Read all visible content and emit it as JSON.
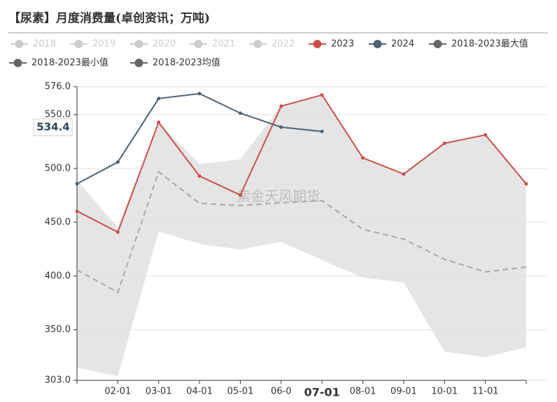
{
  "chart_data": {
    "type": "line",
    "title": "【尿素】月度消费量(卓创资讯；万吨)",
    "watermark": "紫金天风期货",
    "categories": [
      null,
      "02-01",
      "03-01",
      "04-01",
      "05-01",
      "06-0",
      "07-01",
      "08-01",
      "09-01",
      "10-01",
      "11-01",
      null
    ],
    "highlight_category": 6,
    "pointer_value": 534.4,
    "ylim": [
      303,
      576
    ],
    "yticks": [
      {
        "value": 303,
        "label": "303.0"
      },
      {
        "value": 350,
        "label": "350.0"
      },
      {
        "value": 400,
        "label": "400.0"
      },
      {
        "value": 450,
        "label": "450.0"
      },
      {
        "value": 500,
        "label": "500.0"
      },
      {
        "value": 550,
        "label": "550.0"
      },
      {
        "value": 576,
        "label": "576.0"
      }
    ],
    "grid": true,
    "series": [
      {
        "name": "2018",
        "color": "#cccccc",
        "hidden": true
      },
      {
        "name": "2019",
        "color": "#cccccc",
        "hidden": true
      },
      {
        "name": "2020",
        "color": "#cccccc",
        "hidden": true
      },
      {
        "name": "2021",
        "color": "#cccccc",
        "hidden": true
      },
      {
        "name": "2022",
        "color": "#cccccc",
        "hidden": true
      },
      {
        "name": "2023",
        "color": "#c9504d",
        "values": [
          460.3,
          440.8,
          542.9,
          492.9,
          475.3,
          557.9,
          568.3,
          509.8,
          494.8,
          523.4,
          531.2,
          485.7
        ]
      },
      {
        "name": "2024",
        "color": "#4f6272",
        "values": [
          485.7,
          505.9,
          565.0,
          569.6,
          551.4,
          538.4,
          534.4,
          null,
          null,
          null,
          null,
          null
        ]
      },
      {
        "name": "2018-2023最大值",
        "color": "#666666",
        "role": "band-max",
        "fill": "#e5e5e5",
        "values": [
          489,
          445,
          542.9,
          504,
          508.5,
          558,
          568.3,
          509.8,
          494.8,
          523.4,
          531.2,
          485.7
        ]
      },
      {
        "name": "2018-2023最小值",
        "color": "#666666",
        "role": "band-min",
        "values": [
          314.7,
          306.9,
          441.5,
          429.8,
          424.6,
          431.7,
          414.8,
          398.6,
          394,
          329.7,
          324.5,
          333.6
        ]
      },
      {
        "name": "2018-2023均值",
        "color": "#666666",
        "role": "mean",
        "line_color": "#aaaaaa",
        "values": [
          405.7,
          384.9,
          496.8,
          467.5,
          465.5,
          468.1,
          470.1,
          443.4,
          434.3,
          415.5,
          403.8,
          408.3
        ]
      }
    ]
  }
}
